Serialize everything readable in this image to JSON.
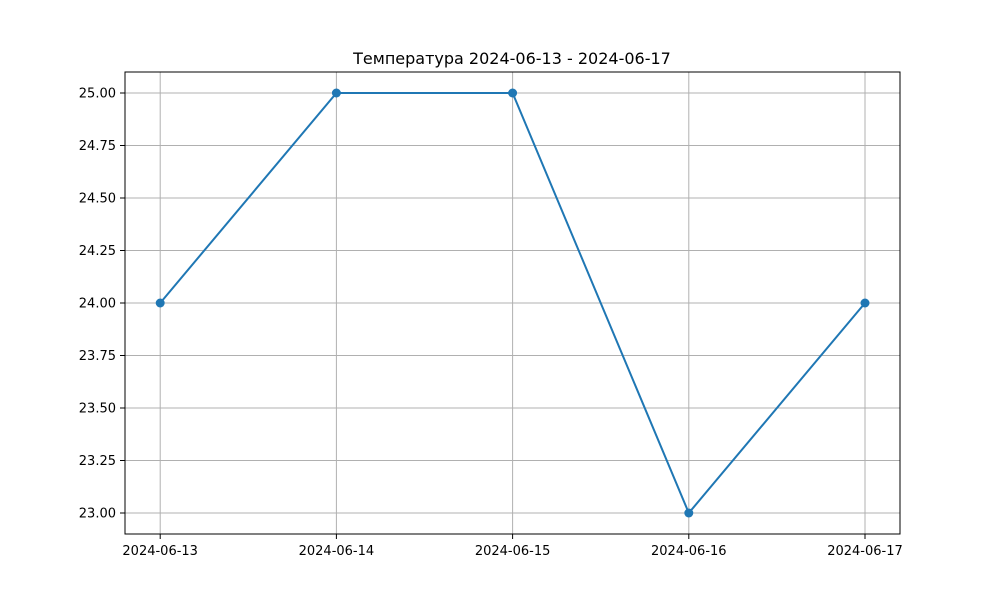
{
  "chart_data": {
    "type": "line",
    "title": "Температура 2024-06-13 - 2024-06-17",
    "xlabel": "",
    "ylabel": "",
    "x": [
      "2024-06-13",
      "2024-06-14",
      "2024-06-15",
      "2024-06-16",
      "2024-06-17"
    ],
    "series": [
      {
        "values": [
          24,
          25,
          25,
          23,
          24
        ],
        "color": "#1f77b4",
        "marker": "circle"
      }
    ],
    "ylim": [
      22.9,
      25.1
    ],
    "yticks": [
      23.0,
      23.25,
      23.5,
      23.75,
      24.0,
      24.25,
      24.5,
      24.75,
      25.0
    ],
    "ytick_labels": [
      "23.00",
      "23.25",
      "23.50",
      "23.75",
      "24.00",
      "24.25",
      "24.50",
      "24.75",
      "25.00"
    ],
    "grid": true,
    "legend": "none"
  }
}
